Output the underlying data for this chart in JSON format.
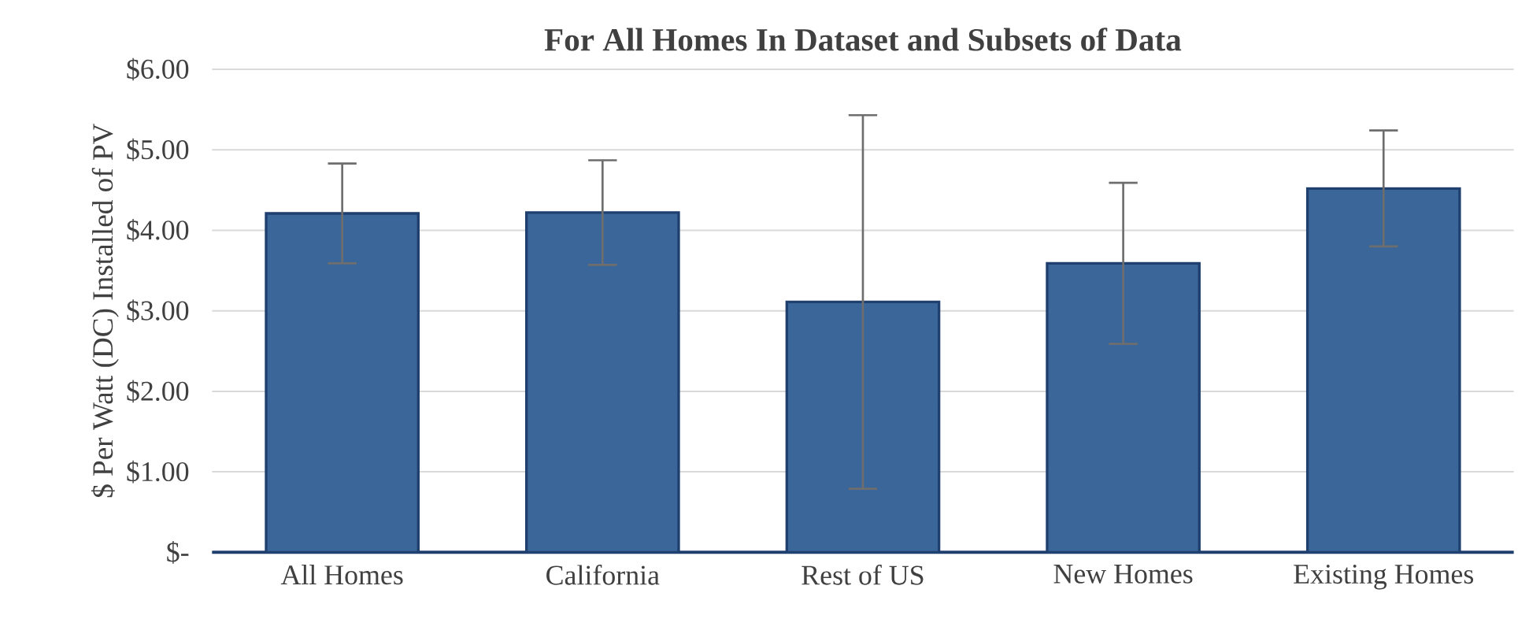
{
  "chart_data": {
    "type": "bar",
    "title": "For All Homes In Dataset and Subsets of Data",
    "ylabel": "$ Per Watt (DC) Installed of PV",
    "categories": [
      "All Homes",
      "California",
      "Rest of US",
      "New Homes",
      "Existing Homes"
    ],
    "values": [
      4.21,
      4.22,
      3.11,
      3.59,
      4.52
    ],
    "errors": [
      0.62,
      0.65,
      2.32,
      1.0,
      0.72
    ],
    "color": "#3b6699",
    "ylim": [
      0,
      6
    ],
    "yticks": [
      {
        "value": 0,
        "label": "$-"
      },
      {
        "value": 1,
        "label": "$1.00"
      },
      {
        "value": 2,
        "label": "$2.00"
      },
      {
        "value": 3,
        "label": "$3.00"
      },
      {
        "value": 4,
        "label": "$4.00"
      },
      {
        "value": 5,
        "label": "$5.00"
      },
      {
        "value": 6,
        "label": "$6.00"
      }
    ],
    "grid": "y"
  }
}
